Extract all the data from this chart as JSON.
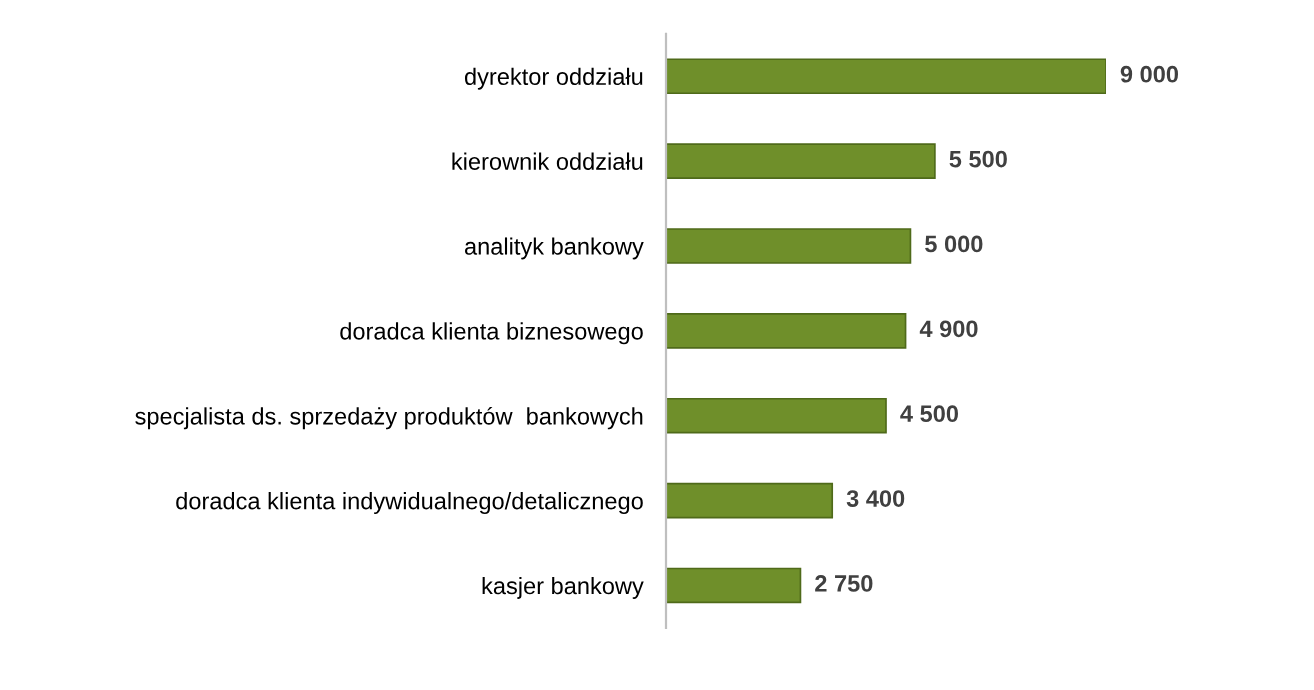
{
  "chart_data": {
    "type": "bar",
    "orientation": "horizontal",
    "categories": [
      "dyrektor oddziału",
      "kierownik oddziału",
      "analityk bankowy",
      "doradca klienta biznesowego",
      "specjalista ds. sprzedaży produktów  bankowych",
      "doradca klienta indywidualnego/detalicznego",
      "kasjer bankowy"
    ],
    "values": [
      9000,
      5500,
      5000,
      4900,
      4500,
      3400,
      2750
    ],
    "value_labels": [
      "9 000",
      "5 500",
      "5 000",
      "4 900",
      "4 500",
      "3 400",
      "2 750"
    ],
    "color": "#6f8f2a",
    "grid": false,
    "legend": false
  }
}
